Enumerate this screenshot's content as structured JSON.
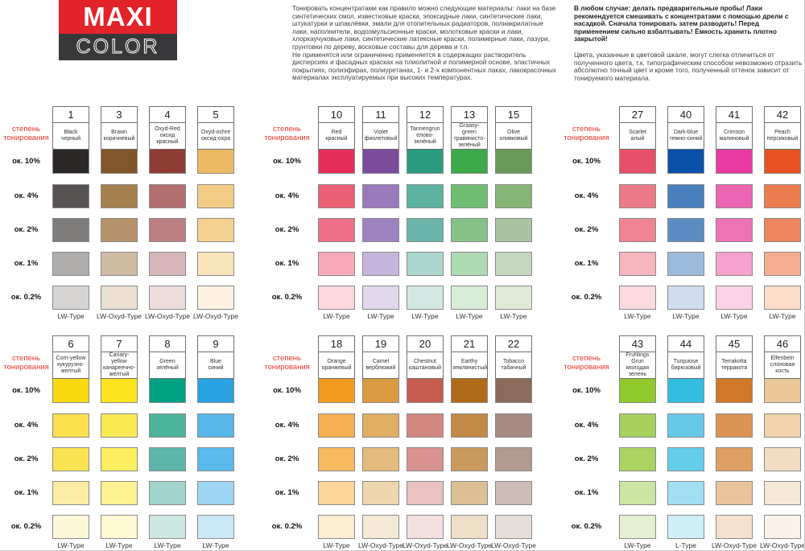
{
  "logo": {
    "maxi": "MAXI",
    "color": "COLOR",
    "red": "#e3232a",
    "dark": "#38383a"
  },
  "intro": {
    "p1": "Тонировать концентратами как правило можно следующие материалы: лаки на базе синтетических смол, известковые краски, эпоксидные лаки, синтетические лаки, штукатурки и шпаклёвки, эмали для отопительных радиаторов, полиакрилатные лаки, наполнители, водоэмульсионные краски, молотковые краски и лаки, хлоркаучуковые лаки, синтетические латексные краски, полимерные лаки, лазури, грунтовки по дереву, восковые составы для дерева и т.п.",
    "p2": "Не применятся или ограниченно применяется в содержащих растворитель дисперсиях и фасадных красках на плиолитной и полимерной основе, эластичных покрытиях, полиэфирах, полиуретанах, 1- и 2-х компонентных лаках, лакокрасочных материалах эксплуатируемых при высоких температурах."
  },
  "warning": {
    "p1": "В любом случае: делать предварительные пробы! Лаки рекомендуется смешивать с концентратами с помощью дрели с насадкой. Сначала тонировать затем разводить! Перед применением сильно взбалтывать! Ёмкость хранить плотно закрытой!",
    "p2": "Цвета, указанные в цветовой шкале, могут слегка отличиться от полученного цвета, т.к. типографическим способом невозможно отразить абсолютно точный цвет и кроме того, полученный оттенок зависит от тонируемого материала."
  },
  "scale_label": "степень тонирования",
  "levels": [
    "ок. 10%",
    "ок. 4%",
    "ок. 2%",
    "ок. 1%",
    "ок. 0.2%"
  ],
  "groups": [
    {
      "columns": [
        {
          "num": "1",
          "en": "Black",
          "ru": "черный",
          "type": "LW-Type",
          "shades": [
            "#2b2827",
            "#565352",
            "#7e7c7a",
            "#aeadab",
            "#d5d4d2"
          ]
        },
        {
          "num": "3",
          "en": "Brawn",
          "ru": "коричневый",
          "type": "LW-Oxyd-Type",
          "shades": [
            "#80562a",
            "#a5814f",
            "#b6926d",
            "#cfbaa2",
            "#ebe0d2"
          ]
        },
        {
          "num": "4",
          "en": "Oxyd-Red",
          "ru": "оксид красный",
          "type": "LW-Oxyd-Type",
          "shades": [
            "#8f3c35",
            "#b26f6e",
            "#bc7f81",
            "#d7b6b9",
            "#ecdcdc"
          ]
        },
        {
          "num": "5",
          "en": "Oxyd-ochre",
          "ru": "оксид-охра",
          "type": "LW-Oxyd-Type",
          "shades": [
            "#edba64",
            "#f3cd86",
            "#f5d190",
            "#fae4b9",
            "#fdf2df"
          ]
        }
      ]
    },
    {
      "columns": [
        {
          "num": "10",
          "en": "Red",
          "ru": "красный",
          "type": "LW-Type",
          "shades": [
            "#e62e58",
            "#ec6076",
            "#ef7187",
            "#f7abb9",
            "#fbd7de"
          ]
        },
        {
          "num": "11",
          "en": "Violet",
          "ru": "фиолетовый",
          "type": "LW-Type",
          "shades": [
            "#7b4b9c",
            "#9a7abc",
            "#9d82c0",
            "#c5b5dc",
            "#e0d7ec"
          ]
        },
        {
          "num": "12",
          "en": "Tannengrun",
          "ru": "елово-зелёный",
          "type": "LW-Type",
          "shades": [
            "#2b9b81",
            "#5cb3a2",
            "#6bb5aa",
            "#abd6ce",
            "#d2e8e3"
          ]
        },
        {
          "num": "13",
          "en": "Graasy-green",
          "ru": "травянисто-зелёный",
          "type": "LW-Type",
          "shades": [
            "#3daa4a",
            "#70be74",
            "#86c287",
            "#aedaaf",
            "#d8edd7"
          ]
        },
        {
          "num": "15",
          "en": "Olive",
          "ru": "оливковый",
          "type": "LW-Type",
          "shades": [
            "#6b9b59",
            "#86b577",
            "#a9c3a0",
            "#c4d7bc",
            "#dfebd6"
          ]
        }
      ]
    },
    {
      "columns": [
        {
          "num": "27",
          "en": "Scarlet",
          "ru": "алый",
          "type": "LW-Type",
          "shades": [
            "#e75069",
            "#ed7b87",
            "#ef8590",
            "#f6b4bc",
            "#fbdbdf"
          ]
        },
        {
          "num": "40",
          "en": "Dark-blue",
          "ru": "темно-синий",
          "type": "LW-Type",
          "shades": [
            "#0b50a8",
            "#4a80bd",
            "#5b8dc3",
            "#9cbadb",
            "#cfddee"
          ]
        },
        {
          "num": "41",
          "en": "Crimson",
          "ru": "малиновый",
          "type": "LW-Type",
          "shades": [
            "#e83aa1",
            "#ec64b2",
            "#ee72b8",
            "#f5a2cd",
            "#fbd2e7"
          ]
        },
        {
          "num": "42",
          "en": "Peach",
          "ru": "персиковый",
          "type": "LW-Type",
          "shades": [
            "#e65221",
            "#ec7b4e",
            "#ee8560",
            "#f5af90",
            "#fbddc9"
          ]
        }
      ]
    },
    {
      "columns": [
        {
          "num": "6",
          "en": "Corn-yellow",
          "ru": "кукурузно-желтый",
          "type": "LW-Type",
          "shades": [
            "#f9d90f",
            "#fae04d",
            "#fae352",
            "#fceca3",
            "#fdf7d9"
          ]
        },
        {
          "num": "7",
          "en": "Canary-yellow",
          "ru": "канареечно-желтый",
          "type": "LW-Type",
          "shades": [
            "#fbe41e",
            "#fbe952",
            "#fcee5e",
            "#fdf192",
            "#fef9d2"
          ]
        },
        {
          "num": "8",
          "en": "Green",
          "ru": "зелёный",
          "type": "LW-Type",
          "shades": [
            "#00a183",
            "#4cb49c",
            "#5cb6ab",
            "#a0d4cc",
            "#cde8e3"
          ]
        },
        {
          "num": "9",
          "en": "Blue",
          "ru": "синий",
          "type": "LW-Type",
          "shades": [
            "#2aa2e2",
            "#57b6ea",
            "#5bbaec",
            "#9dd5f3",
            "#cbe8f9"
          ]
        }
      ]
    },
    {
      "columns": [
        {
          "num": "18",
          "en": "Orange",
          "ru": "оранжевый",
          "type": "LW-Type",
          "shades": [
            "#f49b1f",
            "#f7af52",
            "#f8ba5e",
            "#fbd59a",
            "#fdedd2"
          ]
        },
        {
          "num": "19",
          "en": "Camel",
          "ru": "верблюжий",
          "type": "LW-Oxyd-Type",
          "shades": [
            "#d99a42",
            "#e1ae64",
            "#e4bb7c",
            "#edd6ab",
            "#f5ead6"
          ]
        },
        {
          "num": "20",
          "en": "Chestnut",
          "ru": "каштановый",
          "type": "LW-Oxyd-Type",
          "shades": [
            "#c75d51",
            "#d28880",
            "#d8928f",
            "#e9c2c1",
            "#f4e0df"
          ]
        },
        {
          "num": "21",
          "en": "Earthy",
          "ru": "землянистый",
          "type": "LW-Oxyd-Type",
          "shades": [
            "#b06a19",
            "#c28a45",
            "#ca9a5c",
            "#dcbf94",
            "#efdfc7"
          ]
        },
        {
          "num": "22",
          "en": "Tobacco",
          "ru": "табачный",
          "type": "LW-Oxyd-Type",
          "shades": [
            "#8b6b5a",
            "#a78b80",
            "#b29a90",
            "#ccbcb5",
            "#e6ded9"
          ]
        }
      ]
    },
    {
      "columns": [
        {
          "num": "43",
          "en": "Fruhlings Grun",
          "ru": "молодая зелень",
          "type": "LW-Type",
          "shades": [
            "#8fc92b",
            "#a5d15c",
            "#aad462",
            "#cbe5a2",
            "#e4f0d1"
          ]
        },
        {
          "num": "44",
          "en": "Turquiose",
          "ru": "бирюзовый",
          "type": "L-Type",
          "shades": [
            "#32bde1",
            "#66c9e8",
            "#63cdea",
            "#a3dff3",
            "#cfeff9"
          ]
        },
        {
          "num": "45",
          "en": "Terrakotta",
          "ru": "терракота",
          "type": "LW-Oxyd-Type",
          "shades": [
            "#d07928",
            "#dc9455",
            "#de9f62",
            "#ebc49d",
            "#f6e2cd"
          ]
        },
        {
          "num": "46",
          "en": "Elfenbein",
          "ru": "слоновая кость",
          "type": "LW-Oxyd-Type",
          "shades": [
            "#ecc899",
            "#f0d3ab",
            "#f2ddc2",
            "#f6e8d7",
            "#fbf3ea"
          ]
        }
      ]
    }
  ]
}
